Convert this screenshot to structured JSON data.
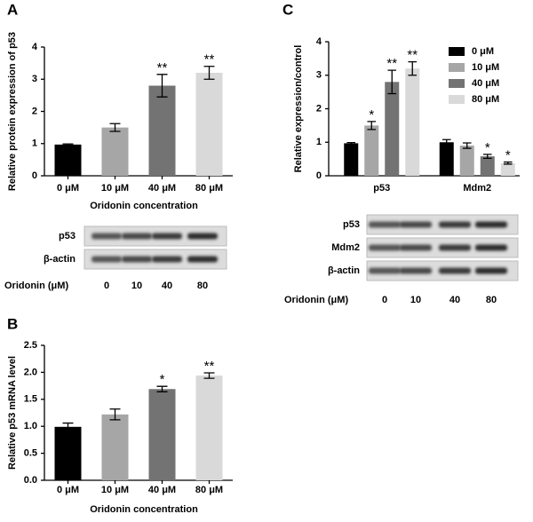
{
  "chart_data": [
    {
      "type": "bar",
      "panel_label": "A",
      "ylabel": "Relative protein expression of p53",
      "xlabel": "Oridonin concentration",
      "categories": [
        "0 μM",
        "10 μM",
        "40 μM",
        "80 μM"
      ],
      "values": [
        0.97,
        1.5,
        2.8,
        3.2
      ],
      "errors": [
        0.02,
        0.12,
        0.35,
        0.2
      ],
      "significance": [
        null,
        null,
        "**",
        "**"
      ],
      "colors": [
        "#000000",
        "#a6a6a6",
        "#737373",
        "#d9d9d9"
      ],
      "ylim": [
        0,
        4
      ],
      "yticks": [
        0,
        1,
        2,
        3,
        4
      ]
    },
    {
      "type": "bar",
      "panel_label": "B",
      "ylabel": "Relative p53 mRNA level",
      "xlabel": "Oridonin concentration",
      "categories": [
        "0 μM",
        "10 μM",
        "40 μM",
        "80 μM"
      ],
      "values": [
        0.99,
        1.22,
        1.69,
        1.94
      ],
      "errors": [
        0.07,
        0.1,
        0.05,
        0.05
      ],
      "significance": [
        null,
        null,
        "*",
        "**"
      ],
      "colors": [
        "#000000",
        "#a6a6a6",
        "#737373",
        "#d9d9d9"
      ],
      "ylim": [
        0,
        2.5
      ],
      "yticks": [
        {
          "value": 0,
          "label": "0.0"
        },
        0.5,
        {
          "value": 1,
          "label": "1.0"
        },
        1.5,
        {
          "value": 2,
          "label": "2.0"
        },
        2.5
      ]
    },
    {
      "type": "grouped_bar",
      "panel_label": "C",
      "ylabel": "Relative expression/control",
      "categories": [
        "p53",
        "Mdm2"
      ],
      "legend": "upper right",
      "series": [
        {
          "name": "0 μM",
          "color": "#000000",
          "values": [
            0.97,
            1.0
          ],
          "errors": [
            0.02,
            0.08
          ],
          "significance": [
            null,
            null
          ]
        },
        {
          "name": "10 μM",
          "color": "#a6a6a6",
          "values": [
            1.5,
            0.9
          ],
          "errors": [
            0.12,
            0.08
          ],
          "significance": [
            "*",
            null
          ]
        },
        {
          "name": "40 μM",
          "color": "#737373",
          "values": [
            2.8,
            0.58
          ],
          "errors": [
            0.35,
            0.06
          ],
          "significance": [
            "**",
            "*"
          ]
        },
        {
          "name": "80 μM",
          "color": "#d9d9d9",
          "values": [
            3.2,
            0.38
          ],
          "errors": [
            0.2,
            0.03
          ],
          "significance": [
            "**",
            "*"
          ]
        }
      ],
      "ylim": [
        0,
        4
      ],
      "yticks": [
        0,
        1,
        2,
        3,
        4
      ]
    }
  ],
  "blots": [
    {
      "rows": [
        "p53",
        "β-actin"
      ],
      "treatment_label": "Oridonin (μM)",
      "lanes": [
        0,
        10,
        40,
        80
      ]
    },
    {
      "rows": [
        "p53",
        "Mdm2",
        "β-actin"
      ],
      "treatment_label": "Oridonin (μM)",
      "lanes": [
        0,
        10,
        40,
        80
      ]
    }
  ]
}
